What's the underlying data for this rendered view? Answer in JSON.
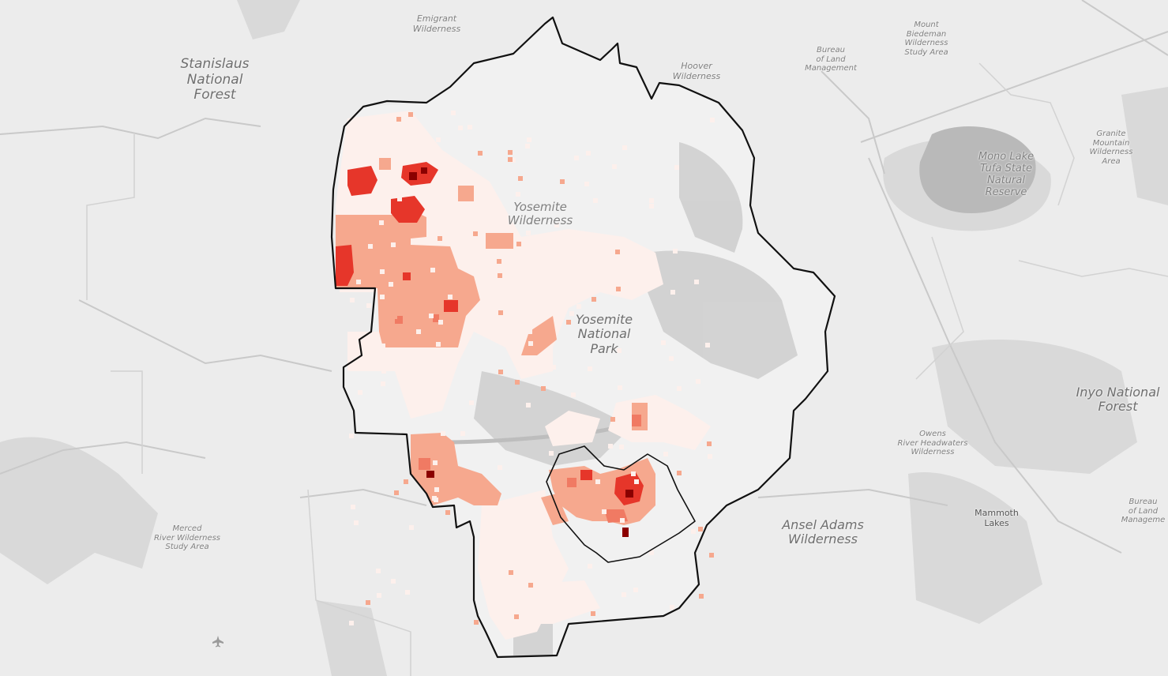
{
  "labels": {
    "emigrant": "Emigrant\nWilderness",
    "stanislaus": "Stanislaus\nNational\nForest",
    "hoover": "Hoover\nWilderness",
    "blm_north": "Bureau\nof Land\nManagement",
    "mount_biedeman": "Mount\nBiedeman\nWilderness\nStudy Area",
    "granite_mountain": "Granite\nMountain\nWilderness\nArea",
    "mono_lake": "Mono Lake\nTufa State\nNatural\nReserve",
    "yosemite_wilderness": "Yosemite\nWilderness",
    "yosemite_np": "Yosemite\nNational\nPark",
    "inyo": "Inyo National\nForest",
    "owens": "Owens\nRiver Headwaters\nWilderness",
    "ansel_adams": "Ansel Adams\nWilderness",
    "mammoth": "Mammoth\nLakes",
    "blm_south": "Bureau\nof Land\nManageme",
    "merced": "Merced\nRiver Wilderness\nStudy Area"
  },
  "overlay": {
    "colors": {
      "very_low": "#fdf0ec",
      "low": "#f6a88e",
      "moderate": "#f07a63",
      "high": "#e6362a",
      "very_high": "#8b0000"
    },
    "boundary_color": "#111111"
  },
  "icons": {
    "airport": "airplane-icon"
  }
}
